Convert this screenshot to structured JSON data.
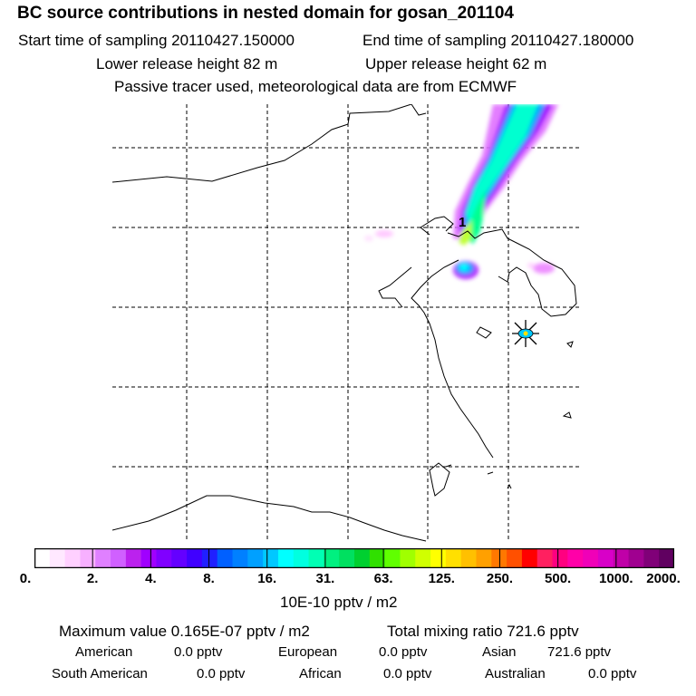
{
  "header": {
    "title": "BC  source contributions in nested domain for gosan_201104",
    "start": "Start time of sampling 20110427.150000",
    "end": "End time of sampling 20110427.180000",
    "lower": "Lower release height   82 m",
    "upper": "Upper release height   62 m",
    "note": "Passive tracer used, meteorological data are from ECMWF"
  },
  "map": {
    "receptor_marker": "*",
    "release_label": "1"
  },
  "chart_data": {
    "type": "heatmap",
    "title": "BC  source contributions in nested domain for gosan_201104",
    "colorbar_ticks": [
      "0.",
      "2.",
      "4.",
      "8.",
      "16.",
      "31.",
      "63.",
      "125.",
      "250.",
      "500.",
      "1000.",
      "2000."
    ],
    "colorbar_colors": [
      "#ffffff",
      "#ffe8ff",
      "#ffd0ff",
      "#f7b0ff",
      "#e080ff",
      "#d060ff",
      "#bb22ee",
      "#a000ff",
      "#8000ff",
      "#6400ff",
      "#4000ff",
      "#2020ff",
      "#0060ff",
      "#0080ff",
      "#00a0ff",
      "#00c8ff",
      "#00ffff",
      "#00ffe0",
      "#00ffb4",
      "#00f080",
      "#00e060",
      "#00d030",
      "#30e000",
      "#60ff00",
      "#a0ff00",
      "#d0ff00",
      "#ffff00",
      "#ffe000",
      "#ffc000",
      "#ffa000",
      "#ff7800",
      "#ff5000",
      "#ff0000",
      "#ff2060",
      "#ff0080",
      "#ff00a8",
      "#f000b8",
      "#d800c8",
      "#c000a8",
      "#a00090",
      "#800078",
      "#600060"
    ],
    "unit": "10E-10 pptv / m2",
    "max_value": "Maximum value  0.165E-07 pptv / m2",
    "total_mixing_ratio": "Total mixing ratio     721.6 pptv",
    "contributions": [
      {
        "region": "American",
        "value": "0.0 pptv"
      },
      {
        "region": "European",
        "value": "0.0 pptv"
      },
      {
        "region": "Asian",
        "value": "721.6 pptv"
      },
      {
        "region": "South American",
        "value": "0.0 pptv"
      },
      {
        "region": "African",
        "value": "0.0 pptv"
      },
      {
        "region": "Australian",
        "value": "0.0 pptv"
      }
    ]
  }
}
